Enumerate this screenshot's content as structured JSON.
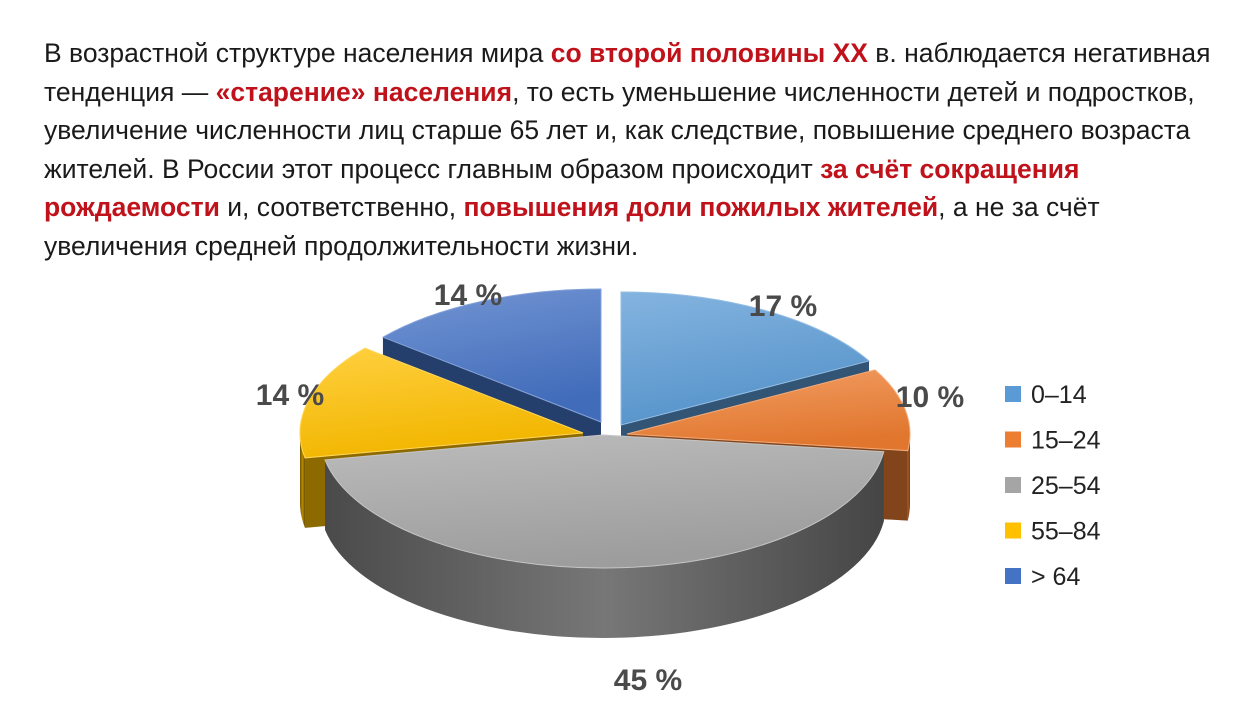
{
  "intro": {
    "segments": [
      {
        "text": "В возрастной структуре населения мира ",
        "highlight": false
      },
      {
        "text": "со второй половины XX",
        "highlight": true
      },
      {
        "text": " в.  наблюдается негативная тенденция — ",
        "highlight": false
      },
      {
        "text": "«старение» населения",
        "highlight": true
      },
      {
        "text": ", то есть уменьшение численности детей и подростков, увеличение численности лиц старше 65 лет и, как следствие, повышение среднего возраста жителей. В России этот процесс главным образом происходит ",
        "highlight": false
      },
      {
        "text": "за счёт сокращения рождаемости",
        "highlight": true
      },
      {
        "text": " и, соответственно, ",
        "highlight": false
      },
      {
        "text": "повышения доли пожилых жителей",
        "highlight": true
      },
      {
        "text": ", а не за счёт увеличения средней продолжительности жизни.",
        "highlight": false
      }
    ]
  },
  "colors": {
    "highlight": "#c0121b",
    "label": "#4a4a4a"
  },
  "chart_data": {
    "type": "pie",
    "style": "3d-exploded",
    "legend_position": "right",
    "slices": [
      {
        "category": "0–14",
        "value": 17,
        "label": "17 %",
        "color": "#5b9bd5"
      },
      {
        "category": "15–24",
        "value": 10,
        "label": "10 %",
        "color": "#ed7d31"
      },
      {
        "category": "25–54",
        "value": 45,
        "label": "45 %",
        "color": "#a5a5a5"
      },
      {
        "category": "55–84",
        "value": 14,
        "label": "14 %",
        "color": "#ffc000"
      },
      {
        "category": "> 64",
        "value": 14,
        "label": "14 %",
        "color": "#4472c4"
      }
    ]
  }
}
